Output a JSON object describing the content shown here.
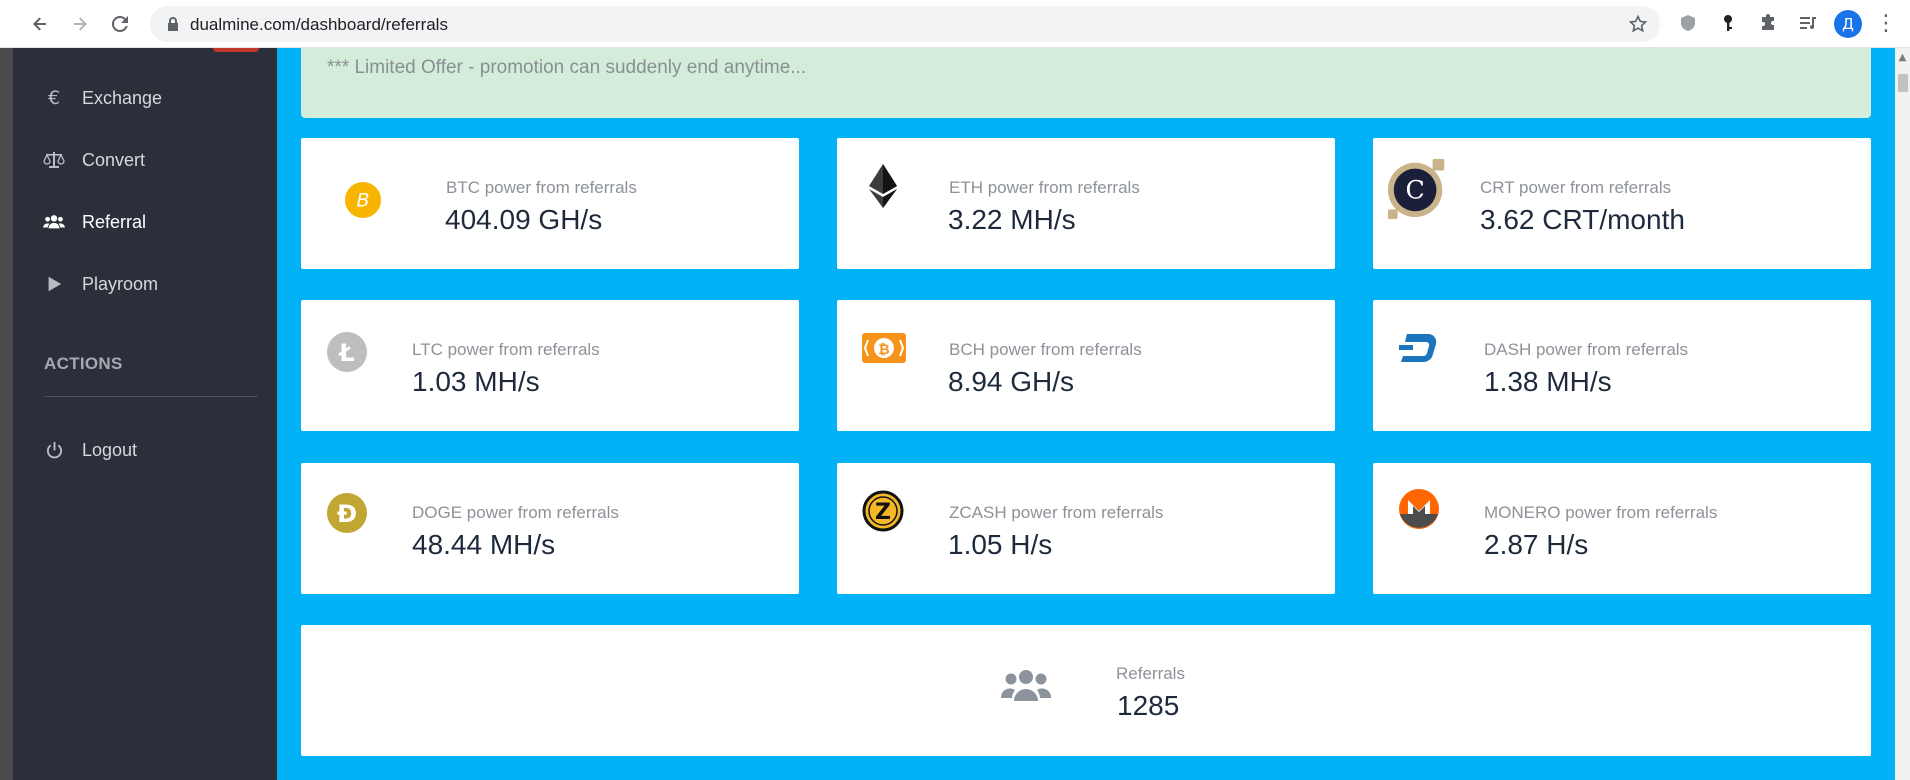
{
  "browser": {
    "url": "dualmine.com/dashboard/referrals",
    "profile_initial": "Д"
  },
  "sidebar": {
    "items": [
      {
        "label": "Exchange",
        "icon": "euro-icon"
      },
      {
        "label": "Convert",
        "icon": "balance-scale-icon"
      },
      {
        "label": "Referral",
        "icon": "users-icon",
        "active": true
      },
      {
        "label": "Playroom",
        "icon": "play-icon"
      }
    ],
    "actions_heading": "ACTIONS",
    "logout_label": "Logout"
  },
  "promo": {
    "text": "*** Limited Offer - promotion can suddenly end anytime..."
  },
  "cards": [
    {
      "label": "BTC power from referrals",
      "value": "404.09 GH/s",
      "icon": "bitcoin-icon",
      "color": "#f7b500"
    },
    {
      "label": "ETH power from referrals",
      "value": "3.22 MH/s",
      "icon": "ethereum-icon",
      "color": "#3c3c3d"
    },
    {
      "label": "CRT power from referrals",
      "value": "3.62 CRT/month",
      "icon": "crt-coin-icon",
      "color": "#1b1f3a"
    },
    {
      "label": "LTC power from referrals",
      "value": "1.03 MH/s",
      "icon": "litecoin-icon",
      "color": "#bebebe"
    },
    {
      "label": "BCH power from referrals",
      "value": "8.94 GH/s",
      "icon": "bitcoin-cash-icon",
      "color": "#f7931a"
    },
    {
      "label": "DASH power from referrals",
      "value": "1.38 MH/s",
      "icon": "dash-icon",
      "color": "#1c75bc"
    },
    {
      "label": "DOGE power from referrals",
      "value": "48.44 MH/s",
      "icon": "dogecoin-icon",
      "color": "#c2a633"
    },
    {
      "label": "ZCASH power from referrals",
      "value": "1.05 H/s",
      "icon": "zcash-icon",
      "color": "#f4b728"
    },
    {
      "label": "MONERO power from referrals",
      "value": "2.87 H/s",
      "icon": "monero-icon",
      "color": "#ff6600"
    }
  ],
  "referrals": {
    "label": "Referrals",
    "value": "1285",
    "icon": "users-icon"
  },
  "colors": {
    "main_bg": "#02b2f6",
    "sidebar_bg": "#2a2f3a",
    "promo_bg": "#d4edda"
  }
}
